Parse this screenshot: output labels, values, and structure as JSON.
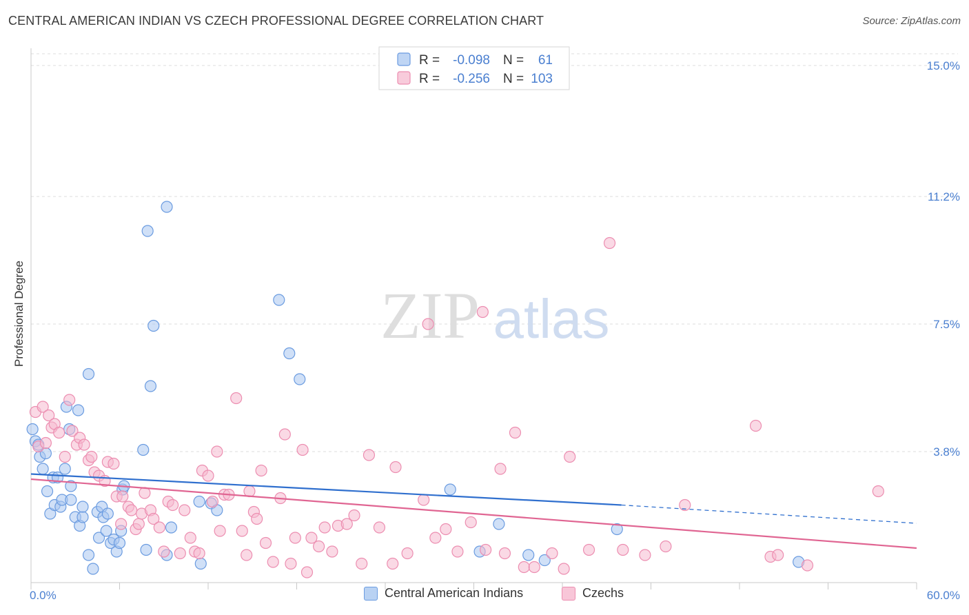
{
  "header": {
    "title": "CENTRAL AMERICAN INDIAN VS CZECH PROFESSIONAL DEGREE CORRELATION CHART",
    "source": "Source: ZipAtlas.com"
  },
  "watermark": {
    "zip": "ZIP",
    "atlas": "atlas"
  },
  "colors": {
    "blue": "#6a9be0",
    "blue_fill": "#a9c7f0",
    "blue_line": "#2f6fce",
    "pink": "#ec8db0",
    "pink_fill": "#f6b9cf",
    "pink_line": "#e06592",
    "tick": "#4a7fd0",
    "grid": "#dddddd"
  },
  "legend": {
    "rows": [
      {
        "r_label": "R =",
        "r_value": "-0.098",
        "n_label": "N =",
        "n_value": "61"
      },
      {
        "r_label": "R =",
        "r_value": "-0.256",
        "n_label": "N =",
        "n_value": "103"
      }
    ]
  },
  "chart_data": {
    "type": "scatter",
    "title": "CENTRAL AMERICAN INDIAN VS CZECH PROFESSIONAL DEGREE CORRELATION CHART",
    "xlabel": "",
    "ylabel": "Professional Degree",
    "xlim": [
      0,
      60
    ],
    "ylim": [
      0,
      15.5
    ],
    "x_tick_labels": [
      "0.0%",
      "60.0%"
    ],
    "y_ticks": [
      3.8,
      7.5,
      11.2,
      15.0
    ],
    "y_tick_labels": [
      "3.8%",
      "7.5%",
      "11.2%",
      "15.0%"
    ],
    "grid": true,
    "legend_position": "top-center",
    "series": [
      {
        "name": "Central American Indians",
        "color": "blue",
        "r": -0.098,
        "n": 61,
        "trend": {
          "x": [
            0,
            40
          ],
          "y": [
            3.15,
            2.25
          ],
          "dashed_to": [
            60,
            1.72
          ]
        },
        "points": [
          [
            0.1,
            4.45
          ],
          [
            0.3,
            4.1
          ],
          [
            0.5,
            4.0
          ],
          [
            0.6,
            3.65
          ],
          [
            0.8,
            3.3
          ],
          [
            1.0,
            3.75
          ],
          [
            1.1,
            2.65
          ],
          [
            1.3,
            2.0
          ],
          [
            1.5,
            3.05
          ],
          [
            1.6,
            2.25
          ],
          [
            1.8,
            3.05
          ],
          [
            2.0,
            2.2
          ],
          [
            2.1,
            2.4
          ],
          [
            2.3,
            3.3
          ],
          [
            2.4,
            5.1
          ],
          [
            2.6,
            4.45
          ],
          [
            2.7,
            2.8
          ],
          [
            2.7,
            2.4
          ],
          [
            3.0,
            1.9
          ],
          [
            3.2,
            5.0
          ],
          [
            3.3,
            1.65
          ],
          [
            3.5,
            1.9
          ],
          [
            3.5,
            2.2
          ],
          [
            3.9,
            0.8
          ],
          [
            3.9,
            6.05
          ],
          [
            4.2,
            0.4
          ],
          [
            4.5,
            2.05
          ],
          [
            4.6,
            1.3
          ],
          [
            4.8,
            2.2
          ],
          [
            4.9,
            1.9
          ],
          [
            5.1,
            1.5
          ],
          [
            5.2,
            2.0
          ],
          [
            5.4,
            1.15
          ],
          [
            5.6,
            1.25
          ],
          [
            5.8,
            0.9
          ],
          [
            6.0,
            1.15
          ],
          [
            6.1,
            1.5
          ],
          [
            6.2,
            2.7
          ],
          [
            6.3,
            2.8
          ],
          [
            7.6,
            3.85
          ],
          [
            7.8,
            0.95
          ],
          [
            7.9,
            10.2
          ],
          [
            8.1,
            5.7
          ],
          [
            8.3,
            7.45
          ],
          [
            9.2,
            10.9
          ],
          [
            9.2,
            0.8
          ],
          [
            9.5,
            1.6
          ],
          [
            11.4,
            2.35
          ],
          [
            11.5,
            0.55
          ],
          [
            12.2,
            2.3
          ],
          [
            12.6,
            2.1
          ],
          [
            16.8,
            8.2
          ],
          [
            17.5,
            6.65
          ],
          [
            18.2,
            5.9
          ],
          [
            28.4,
            2.7
          ],
          [
            30.4,
            0.9
          ],
          [
            31.7,
            1.7
          ],
          [
            33.7,
            0.8
          ],
          [
            34.8,
            0.65
          ],
          [
            39.7,
            1.55
          ],
          [
            52.0,
            0.6
          ]
        ]
      },
      {
        "name": "Czechs",
        "color": "pink",
        "r": -0.256,
        "n": 103,
        "trend": {
          "x": [
            0,
            60
          ],
          "y": [
            3.0,
            1.0
          ]
        },
        "points": [
          [
            0.3,
            4.95
          ],
          [
            0.5,
            3.95
          ],
          [
            0.8,
            5.1
          ],
          [
            1.0,
            4.05
          ],
          [
            1.2,
            4.85
          ],
          [
            1.4,
            4.5
          ],
          [
            1.6,
            4.6
          ],
          [
            1.9,
            4.35
          ],
          [
            2.3,
            3.65
          ],
          [
            2.6,
            5.3
          ],
          [
            2.8,
            4.4
          ],
          [
            3.1,
            4.0
          ],
          [
            3.3,
            4.2
          ],
          [
            3.6,
            4.0
          ],
          [
            3.9,
            3.55
          ],
          [
            4.1,
            3.65
          ],
          [
            4.3,
            3.2
          ],
          [
            4.6,
            3.1
          ],
          [
            5.0,
            2.95
          ],
          [
            5.2,
            3.5
          ],
          [
            5.6,
            3.45
          ],
          [
            5.8,
            2.5
          ],
          [
            6.1,
            1.7
          ],
          [
            6.2,
            2.5
          ],
          [
            6.6,
            2.2
          ],
          [
            6.8,
            2.1
          ],
          [
            7.1,
            1.55
          ],
          [
            7.3,
            1.7
          ],
          [
            7.5,
            2.0
          ],
          [
            7.7,
            2.6
          ],
          [
            8.1,
            2.1
          ],
          [
            8.3,
            1.85
          ],
          [
            8.7,
            1.6
          ],
          [
            9.0,
            0.9
          ],
          [
            9.3,
            2.35
          ],
          [
            9.6,
            2.25
          ],
          [
            10.1,
            0.85
          ],
          [
            10.4,
            2.1
          ],
          [
            10.8,
            1.3
          ],
          [
            11.1,
            0.9
          ],
          [
            11.4,
            0.85
          ],
          [
            11.6,
            3.25
          ],
          [
            12.0,
            3.1
          ],
          [
            12.3,
            2.35
          ],
          [
            12.6,
            3.8
          ],
          [
            12.8,
            1.5
          ],
          [
            13.1,
            2.55
          ],
          [
            13.4,
            2.55
          ],
          [
            13.9,
            5.35
          ],
          [
            14.3,
            1.5
          ],
          [
            14.6,
            0.8
          ],
          [
            14.8,
            2.65
          ],
          [
            15.1,
            2.05
          ],
          [
            15.3,
            1.85
          ],
          [
            15.6,
            3.25
          ],
          [
            15.9,
            1.15
          ],
          [
            16.4,
            0.6
          ],
          [
            16.9,
            2.45
          ],
          [
            17.2,
            4.3
          ],
          [
            17.6,
            0.55
          ],
          [
            17.9,
            1.3
          ],
          [
            18.4,
            3.85
          ],
          [
            18.7,
            0.3
          ],
          [
            19.0,
            1.3
          ],
          [
            19.5,
            1.05
          ],
          [
            19.9,
            1.6
          ],
          [
            20.4,
            0.9
          ],
          [
            20.8,
            1.65
          ],
          [
            21.4,
            1.7
          ],
          [
            21.9,
            1.95
          ],
          [
            22.4,
            0.55
          ],
          [
            22.9,
            3.7
          ],
          [
            23.6,
            1.6
          ],
          [
            24.5,
            0.55
          ],
          [
            24.7,
            3.35
          ],
          [
            25.5,
            0.85
          ],
          [
            26.6,
            2.4
          ],
          [
            26.9,
            7.5
          ],
          [
            27.4,
            1.3
          ],
          [
            28.1,
            1.55
          ],
          [
            28.9,
            0.9
          ],
          [
            29.8,
            1.75
          ],
          [
            30.6,
            7.85
          ],
          [
            30.8,
            0.95
          ],
          [
            31.8,
            3.3
          ],
          [
            32.1,
            0.85
          ],
          [
            32.8,
            4.35
          ],
          [
            33.4,
            0.45
          ],
          [
            34.1,
            0.45
          ],
          [
            35.3,
            0.85
          ],
          [
            36.1,
            0.4
          ],
          [
            36.5,
            3.65
          ],
          [
            37.8,
            0.95
          ],
          [
            39.2,
            9.85
          ],
          [
            40.1,
            0.95
          ],
          [
            41.6,
            0.8
          ],
          [
            43.0,
            1.05
          ],
          [
            44.3,
            2.25
          ],
          [
            49.1,
            4.55
          ],
          [
            50.1,
            0.75
          ],
          [
            50.6,
            0.8
          ],
          [
            52.6,
            0.5
          ],
          [
            57.4,
            2.65
          ]
        ]
      }
    ]
  },
  "bottom_legend": {
    "items": [
      {
        "label": "Central American Indians",
        "color": "blue"
      },
      {
        "label": "Czechs",
        "color": "pink"
      }
    ]
  }
}
